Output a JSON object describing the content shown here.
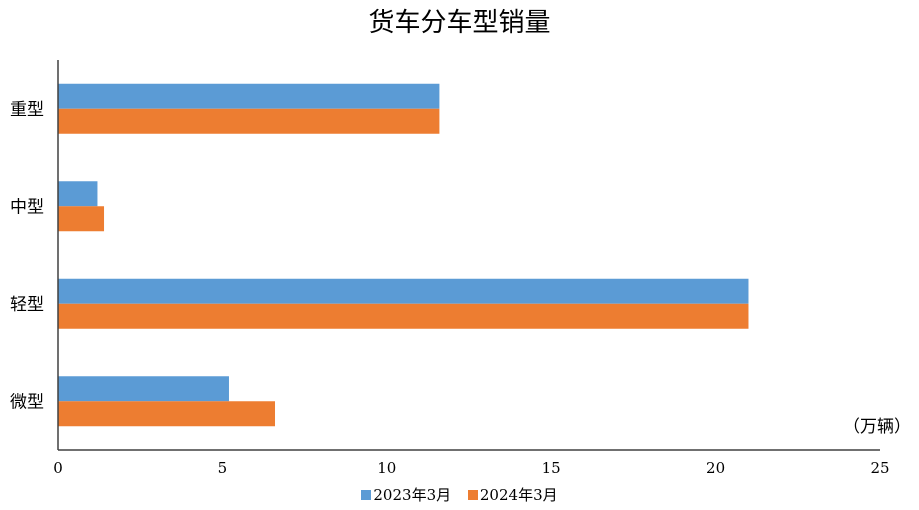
{
  "chart_data": {
    "type": "bar",
    "orientation": "horizontal",
    "title": "货车分车型销量",
    "unit_label": "（万辆）",
    "categories": [
      "重型",
      "中型",
      "轻型",
      "微型"
    ],
    "series": [
      {
        "name": "2023年3月",
        "values": [
          11.6,
          1.2,
          21.0,
          5.2
        ],
        "color": "#5b9bd5"
      },
      {
        "name": "2024年3月",
        "values": [
          11.6,
          1.4,
          21.0,
          6.6
        ],
        "color": "#ed7d31"
      }
    ],
    "xlim": [
      0,
      25
    ],
    "xticks": [
      0,
      5,
      10,
      15,
      20,
      25
    ],
    "grid": false,
    "legend_position": "bottom"
  }
}
